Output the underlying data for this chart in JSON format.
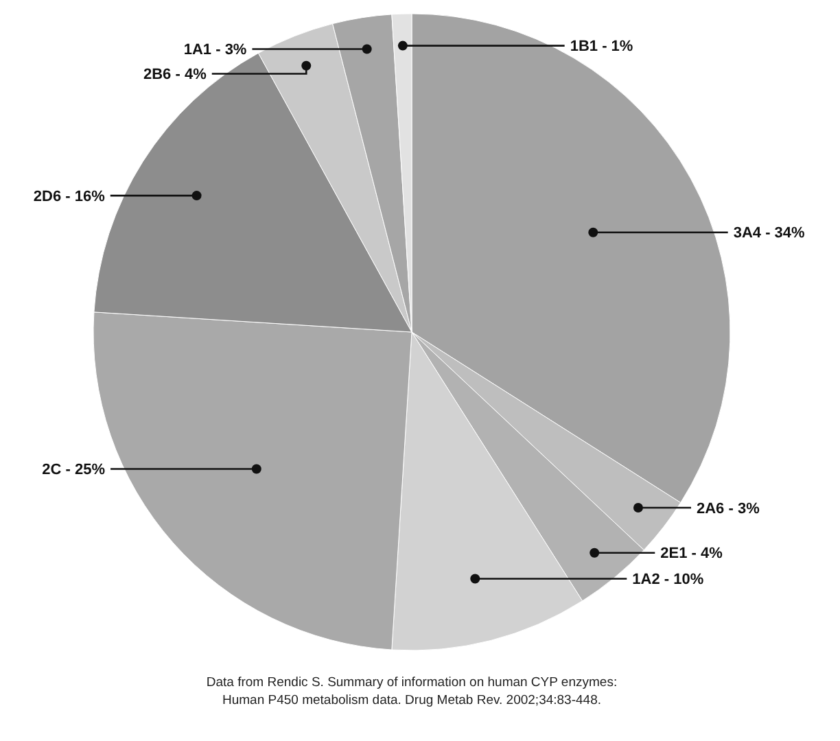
{
  "chart_data": {
    "type": "pie",
    "categories": [
      "3A4 -",
      "2A6 -",
      "2E1 -",
      "1A2 -",
      "2C -",
      "2D6 -",
      "2B6 -",
      "1A1 -",
      "1B1 -"
    ],
    "values": [
      34,
      3,
      4,
      10,
      25,
      16,
      4,
      3,
      1
    ],
    "value_labels": [
      "34%",
      "3%",
      "4%",
      "10%",
      "25%",
      "16%",
      "4%",
      "3%",
      "1%"
    ],
    "colors": [
      "#a3a3a3",
      "#bebebe",
      "#b2b2b2",
      "#d2d2d2",
      "#a9a9a9",
      "#8d8d8d",
      "#c9c9c9",
      "#a6a6a6",
      "#e2e2e2"
    ],
    "annotations": [
      "Data from Rendic S. Summary of information on human CYP enzymes:",
      "Human P450 metabolism data. Drug Metab Rev. 2002;34:83-448."
    ]
  }
}
